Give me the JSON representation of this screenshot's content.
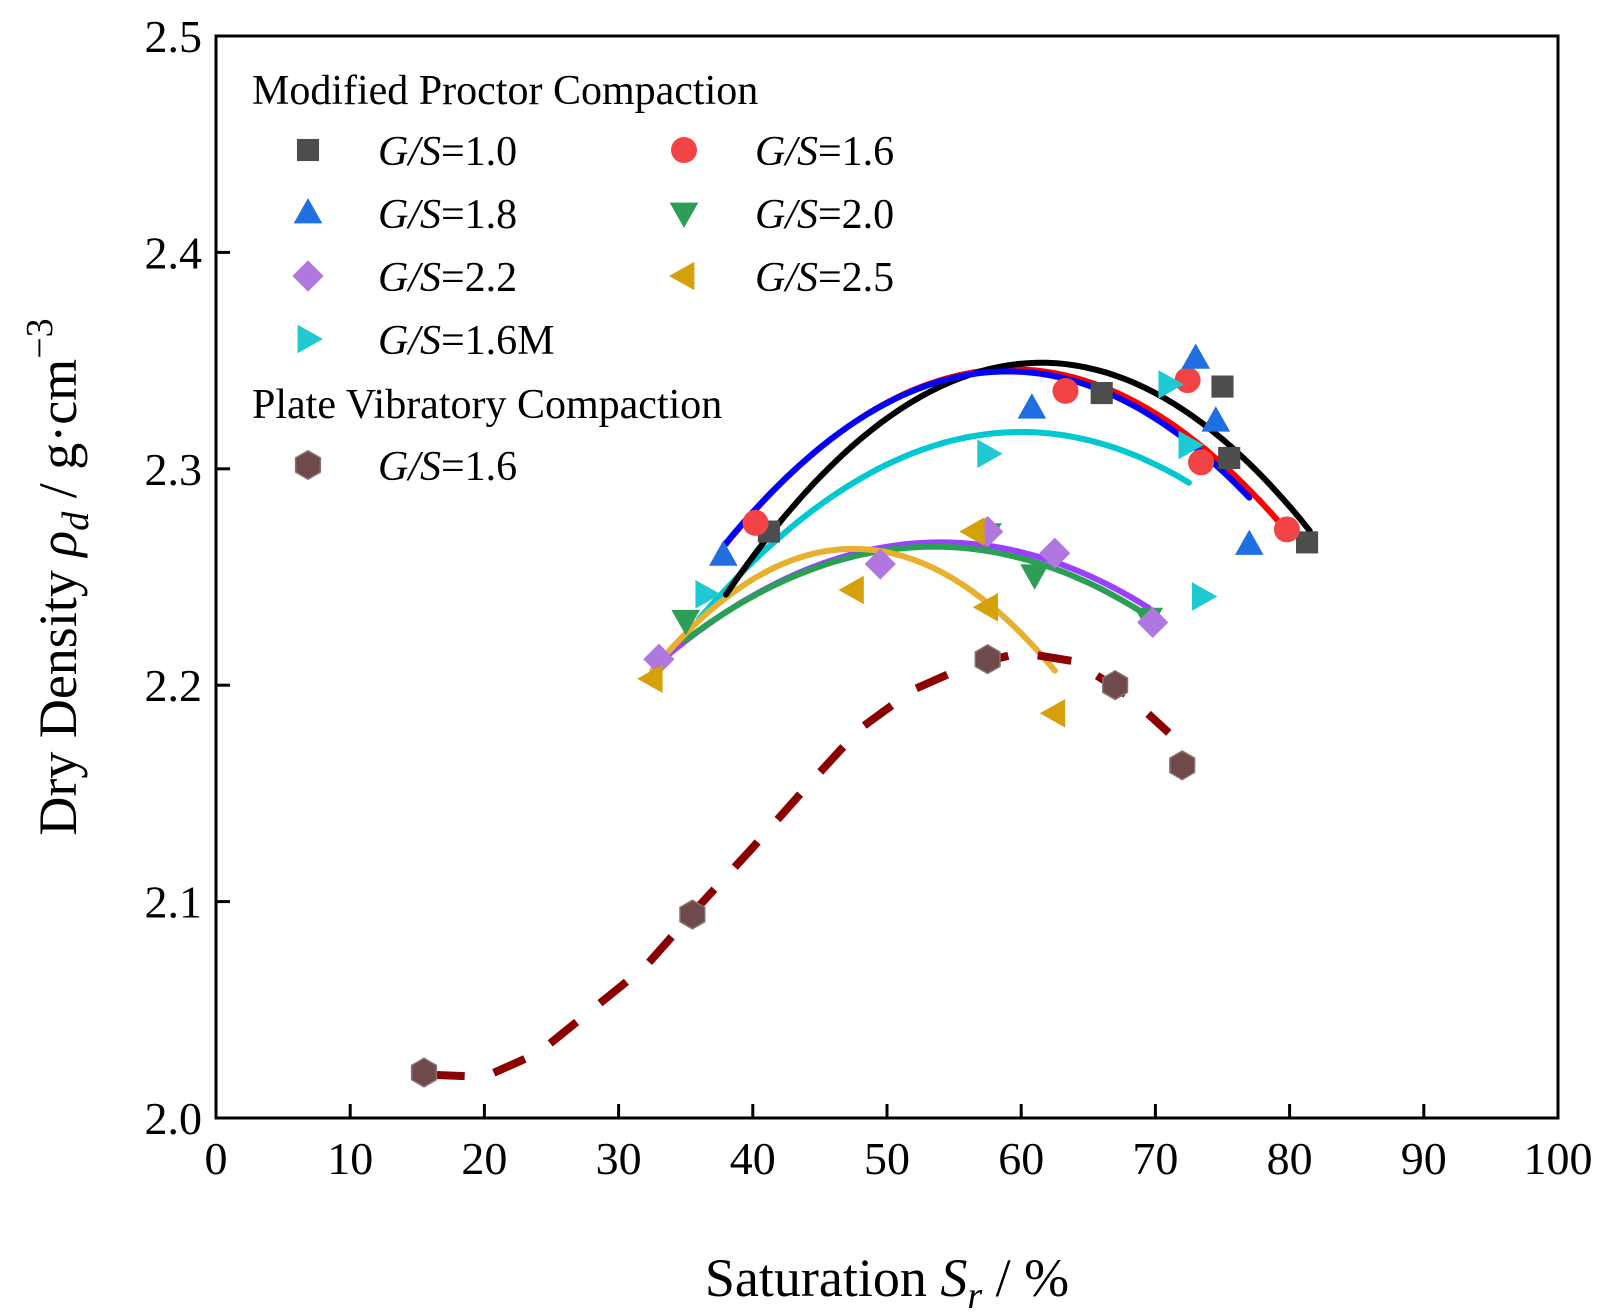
{
  "chart_data": {
    "type": "scatter",
    "xlabel": {
      "main": "Saturation ",
      "sym": "S",
      "sub": "r",
      "tail": " / %"
    },
    "ylabel": {
      "main": "Dry Density ",
      "sym": "ρ",
      "sub": "d",
      "tail": " / g·cm",
      "sup": "−3"
    },
    "xlim": [
      0,
      100
    ],
    "ylim": [
      2.0,
      2.5
    ],
    "xticks": [
      "0",
      "10",
      "20",
      "30",
      "40",
      "50",
      "60",
      "70",
      "80",
      "90",
      "100"
    ],
    "yticks": [
      "2.0",
      "2.1",
      "2.2",
      "2.3",
      "2.4",
      "2.5"
    ],
    "legend": {
      "placement": "top-left",
      "group1_title": "Modified Proctor Compaction",
      "group2_title": "Plate Vibratory Compaction",
      "label_italic": "G/S",
      "entries": [
        {
          "series": 0,
          "value": "=1.0"
        },
        {
          "series": 1,
          "value": "=1.6"
        },
        {
          "series": 2,
          "value": "=1.8"
        },
        {
          "series": 3,
          "value": "=2.0"
        },
        {
          "series": 4,
          "value": "=2.2"
        },
        {
          "series": 5,
          "value": "=2.5"
        },
        {
          "series": 6,
          "value": "=1.6M"
        },
        {
          "series": 7,
          "value": "=1.6"
        }
      ]
    },
    "series": [
      {
        "name": "G/S=1.0",
        "marker": "square",
        "color": "#4d4d4d",
        "fit_color": "#000000",
        "x": [
          41.2,
          66.0,
          75.0,
          75.5,
          81.3
        ],
        "y": [
          2.271,
          2.335,
          2.338,
          2.305,
          2.266
        ],
        "fit": {
          "vertex_x": 61.5,
          "vertex_y": 2.349,
          "a": 0.000194,
          "range": [
            38.0,
            81.5
          ]
        }
      },
      {
        "name": "G/S=1.6",
        "marker": "circle",
        "color": "#f24444",
        "fit_color": "#ff0000",
        "x": [
          40.2,
          63.3,
          72.4,
          73.4,
          79.8
        ],
        "y": [
          2.275,
          2.336,
          2.341,
          2.303,
          2.272
        ],
        "fit": {
          "vertex_x": 59.3,
          "vertex_y": 2.346,
          "a": 0.000178,
          "range": [
            38.0,
            80.0
          ]
        }
      },
      {
        "name": "G/S=1.8",
        "marker": "triangle-up",
        "color": "#1f6fe0",
        "fit_color": "#0000ff",
        "x": [
          37.8,
          60.8,
          73.0,
          74.5,
          77.0
        ],
        "y": [
          2.26,
          2.328,
          2.351,
          2.322,
          2.265
        ],
        "fit": {
          "vertex_x": 59.0,
          "vertex_y": 2.345,
          "a": 0.00018,
          "range": [
            38.0,
            77.0
          ]
        }
      },
      {
        "name": "G/S=2.0",
        "marker": "triangle-down",
        "color": "#2e9e57",
        "fit_color": "#2aa055",
        "x": [
          35.0,
          57.5,
          61.0,
          69.5
        ],
        "y": [
          2.23,
          2.27,
          2.251,
          2.231
        ],
        "fit": {
          "vertex_x": 53.5,
          "vertex_y": 2.264,
          "a": 0.000126,
          "range": [
            35.0,
            69.5
          ]
        }
      },
      {
        "name": "G/S=2.2",
        "marker": "diamond",
        "color": "#b077e0",
        "fit_color": "#9a40ff",
        "x": [
          33.0,
          49.5,
          57.5,
          62.5,
          69.8
        ],
        "y": [
          2.212,
          2.256,
          2.271,
          2.261,
          2.229
        ],
        "fit": {
          "vertex_x": 54.0,
          "vertex_y": 2.266,
          "a": 0.000126,
          "range": [
            33.0,
            69.5
          ]
        }
      },
      {
        "name": "G/S=2.5",
        "marker": "triangle-left",
        "color": "#d4a10a",
        "fit_color": "#e8b030",
        "x": [
          32.5,
          47.5,
          56.5,
          57.5,
          62.5
        ],
        "y": [
          2.203,
          2.244,
          2.271,
          2.236,
          2.187
        ],
        "fit": {
          "vertex_x": 47.5,
          "vertex_y": 2.263,
          "a": 0.00025,
          "range": [
            32.5,
            62.5
          ]
        }
      },
      {
        "name": "G/S=1.6M",
        "marker": "triangle-right",
        "color": "#1ec9d1",
        "fit_color": "#00c8d0",
        "x": [
          36.5,
          57.5,
          71.0,
          72.5,
          73.5
        ],
        "y": [
          2.242,
          2.307,
          2.339,
          2.311,
          2.241
        ],
        "fit": {
          "vertex_x": 60.0,
          "vertex_y": 2.317,
          "a": 0.00015,
          "range": [
            36.0,
            72.5
          ]
        }
      },
      {
        "name": "Plate G/S=1.6",
        "marker": "hexagon",
        "color": "#6e4a4a",
        "fit_color": "#8b0000",
        "dashed": true,
        "x": [
          15.5,
          35.5,
          57.5,
          67.0,
          72.0
        ],
        "y": [
          2.021,
          2.094,
          2.212,
          2.2,
          2.163
        ],
        "fit": {
          "type": "curve",
          "points_x": [
            16.0,
            20.0,
            24.0,
            28.0,
            32.0,
            36.0,
            40.0,
            44.0,
            48.0,
            52.0,
            56.0,
            60.0,
            64.0,
            68.0,
            71.0
          ],
          "points_y": [
            2.02,
            2.019,
            2.03,
            2.05,
            2.07,
            2.098,
            2.125,
            2.153,
            2.18,
            2.198,
            2.209,
            2.215,
            2.211,
            2.195,
            2.178
          ]
        }
      }
    ]
  }
}
